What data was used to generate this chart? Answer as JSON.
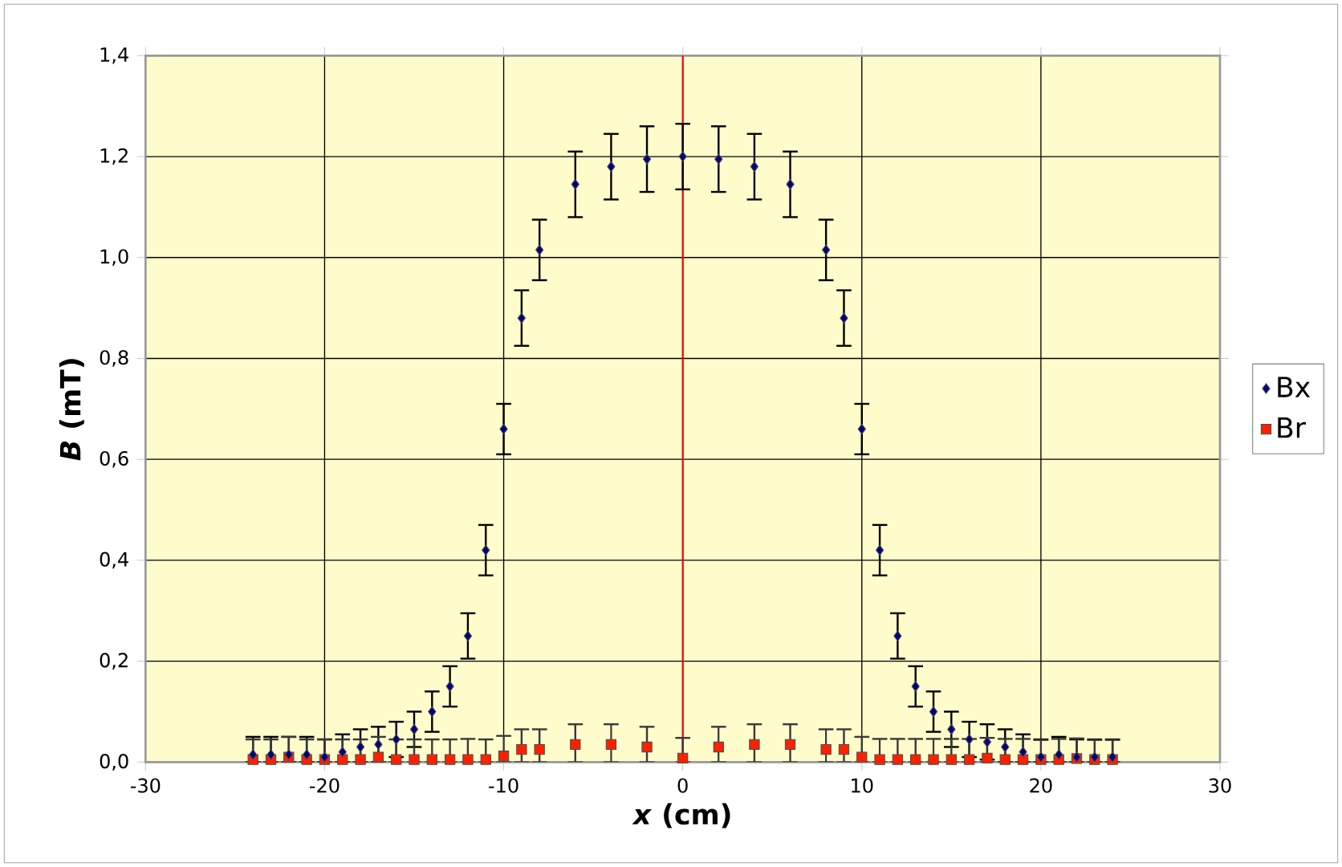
{
  "chart_data": {
    "type": "scatter",
    "xlabel": "*x*  (cm)",
    "ylabel": "*B*  (mT)",
    "x": [
      -24,
      -23,
      -22,
      -21,
      -20,
      -19,
      -18,
      -17,
      -16,
      -15,
      -14,
      -13,
      -12,
      -11,
      -10,
      -9,
      -8,
      -6,
      -4,
      -2,
      0,
      2,
      4,
      6,
      8,
      9,
      10,
      11,
      12,
      13,
      14,
      15,
      16,
      17,
      18,
      19,
      20,
      21,
      22,
      23,
      24
    ],
    "series": [
      {
        "name": "Bx",
        "color": "#000080",
        "marker": "diamond",
        "values": [
          0.015,
          0.015,
          0.015,
          0.015,
          0.01,
          0.02,
          0.03,
          0.035,
          0.045,
          0.065,
          0.1,
          0.15,
          0.25,
          0.42,
          0.66,
          0.88,
          1.015,
          1.145,
          1.18,
          1.195,
          1.2,
          1.195,
          1.18,
          1.145,
          1.015,
          0.88,
          0.66,
          0.42,
          0.25,
          0.15,
          0.1,
          0.065,
          0.045,
          0.04,
          0.03,
          0.02,
          0.01,
          0.015,
          0.01,
          0.01,
          0.01
        ],
        "errors": [
          [
            0,
            0.05
          ],
          [
            0,
            0.05
          ],
          [
            0,
            0.05
          ],
          [
            0,
            0.05
          ],
          [
            0,
            0.045
          ],
          [
            0,
            0.055
          ],
          [
            0,
            0.065
          ],
          [
            0,
            0.07
          ],
          0.035,
          0.035,
          0.04,
          0.04,
          0.045,
          0.05,
          0.05,
          0.055,
          0.06,
          0.065,
          0.065,
          0.065,
          0.065,
          0.065,
          0.065,
          0.065,
          0.06,
          0.055,
          0.05,
          0.05,
          0.045,
          0.04,
          0.04,
          0.035,
          0.035,
          0.035,
          [
            0,
            0.065
          ],
          [
            0,
            0.055
          ],
          [
            0,
            0.045
          ],
          [
            0,
            0.05
          ],
          [
            0,
            0.045
          ],
          [
            0,
            0.045
          ],
          [
            0,
            0.045
          ]
        ]
      },
      {
        "name": "Br",
        "color": "#ff2000",
        "marker": "square",
        "values": [
          0.005,
          0.005,
          0.01,
          0.005,
          0.005,
          0.005,
          0.005,
          0.01,
          0.005,
          0.005,
          0.005,
          0.005,
          0.005,
          0.005,
          0.012,
          0.025,
          0.025,
          0.035,
          0.035,
          0.03,
          0.008,
          0.03,
          0.035,
          0.035,
          0.025,
          0.025,
          0.01,
          0.005,
          0.005,
          0.005,
          0.005,
          0.005,
          0.005,
          0.008,
          0.005,
          0.005,
          0.005,
          0.005,
          0.007,
          0.005,
          0.005
        ],
        "errors": [
          [
            0,
            0.045
          ],
          [
            0,
            0.045
          ],
          [
            0,
            0.05
          ],
          [
            0,
            0.045
          ],
          [
            0,
            0.045
          ],
          [
            0,
            0.045
          ],
          [
            0,
            0.045
          ],
          [
            0,
            0.05
          ],
          [
            0,
            0.045
          ],
          [
            0,
            0.045
          ],
          [
            0,
            0.045
          ],
          [
            0,
            0.045
          ],
          [
            0,
            0.046
          ],
          [
            0,
            0.045
          ],
          [
            0,
            0.052
          ],
          [
            0,
            0.065
          ],
          [
            0,
            0.065
          ],
          [
            0,
            0.075
          ],
          [
            0,
            0.075
          ],
          [
            0,
            0.07
          ],
          [
            0,
            0.048
          ],
          [
            0,
            0.07
          ],
          [
            0,
            0.075
          ],
          [
            0,
            0.075
          ],
          [
            0,
            0.065
          ],
          [
            0,
            0.065
          ],
          [
            0,
            0.05
          ],
          [
            0,
            0.046
          ],
          [
            0,
            0.046
          ],
          [
            0,
            0.046
          ],
          [
            0,
            0.046
          ],
          [
            0,
            0.046
          ],
          [
            0,
            0.046
          ],
          [
            0,
            0.048
          ],
          [
            0,
            0.046
          ],
          [
            0,
            0.046
          ],
          [
            0,
            0.044
          ],
          [
            0,
            0.046
          ],
          [
            0,
            0.047
          ],
          [
            0,
            0.044
          ],
          [
            0,
            0.044
          ]
        ]
      }
    ],
    "xlim": [
      -30,
      30
    ],
    "xticks": [
      -30,
      -20,
      -10,
      0,
      10,
      20,
      30
    ],
    "ylim": [
      0,
      1.4
    ],
    "yticks": [
      {
        "value": 0,
        "label": "0,0"
      },
      {
        "value": 0.2,
        "label": "0,2"
      },
      {
        "value": 0.4,
        "label": "0,4"
      },
      {
        "value": 0.6,
        "label": "0,6"
      },
      {
        "value": 0.8,
        "label": "0,8"
      },
      {
        "value": 1.0,
        "label": "1,0"
      },
      {
        "value": 1.2,
        "label": "1,2"
      },
      {
        "value": 1.4,
        "label": "1,4"
      }
    ],
    "ref_lines": [
      {
        "axis": "x",
        "value": 0,
        "color": "#ff0000"
      }
    ],
    "grid": true,
    "legend": "right"
  }
}
